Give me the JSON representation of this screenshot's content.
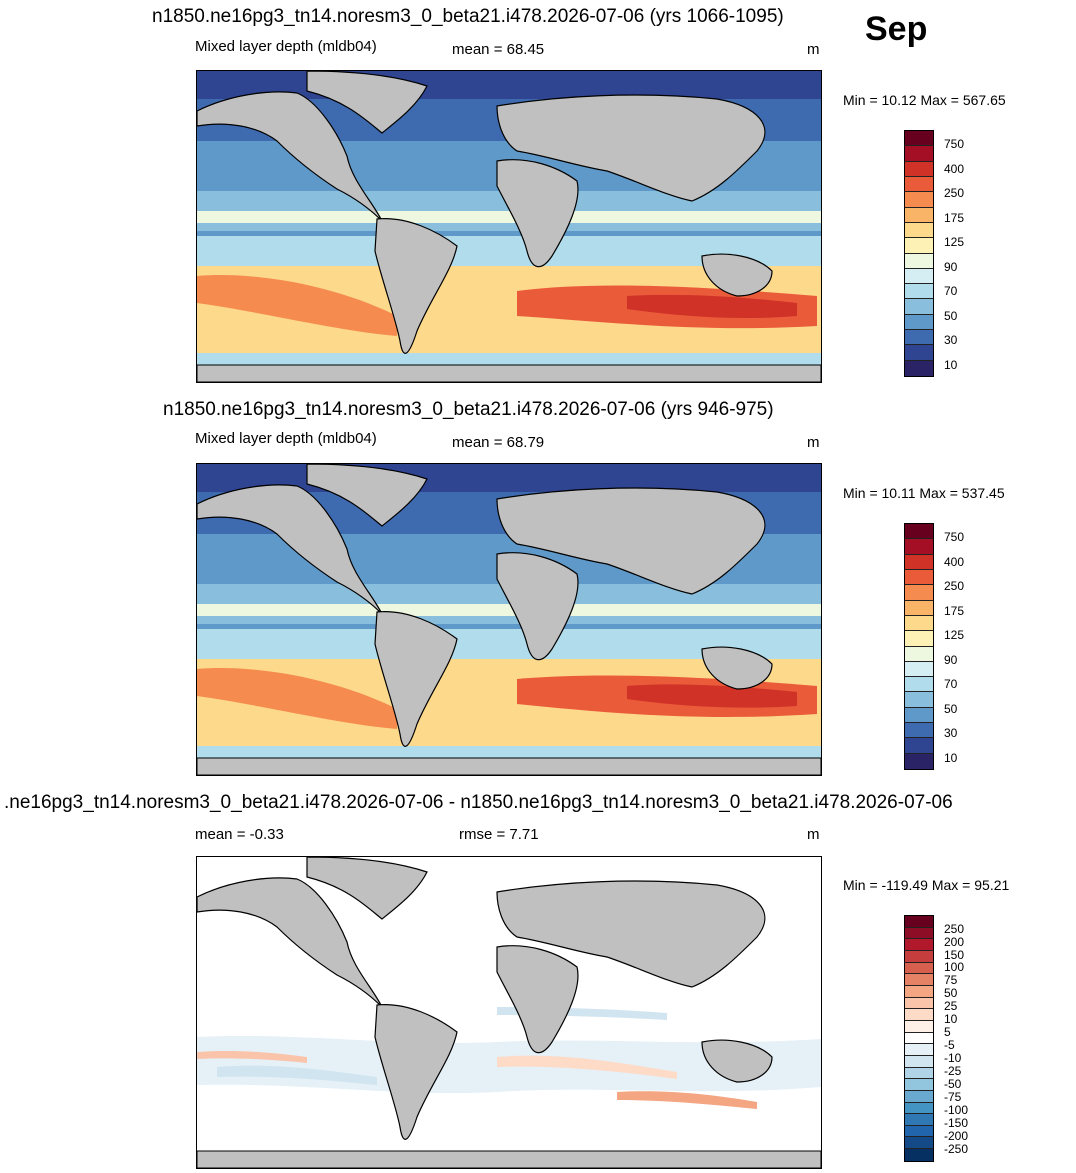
{
  "month_label": "Sep",
  "panels": [
    {
      "title": "n1850.ne16pg3_tn14.noresm3_0_beta21.i478.2026-07-06 (yrs 1066-1095)",
      "variable": "Mixed layer depth (mldb04)",
      "stat1": "mean =  68.45",
      "stat2": "",
      "unit": "m",
      "minmax": "Min =  10.12 Max = 567.65",
      "colorbar": {
        "labels": [
          "750",
          "400",
          "250",
          "175",
          "125",
          "90",
          "70",
          "50",
          "30",
          "10"
        ],
        "colors": [
          "#67001f",
          "#a50f26",
          "#d03227",
          "#ea5b3a",
          "#f58b4f",
          "#f9b467",
          "#fdd98b",
          "#fdf1b5",
          "#eef8e0",
          "#d5eef3",
          "#b0dceb",
          "#89bfdc",
          "#5f99c9",
          "#3e6bb0",
          "#2f4592",
          "#2a2366"
        ]
      }
    },
    {
      "title": "n1850.ne16pg3_tn14.noresm3_0_beta21.i478.2026-07-06 (yrs 946-975)",
      "variable": "Mixed layer depth (mldb04)",
      "stat1": "mean =  68.79",
      "stat2": "",
      "unit": "m",
      "minmax": "Min =  10.11 Max = 537.45",
      "colorbar": {
        "labels": [
          "750",
          "400",
          "250",
          "175",
          "125",
          "90",
          "70",
          "50",
          "30",
          "10"
        ],
        "colors": [
          "#67001f",
          "#a50f26",
          "#d03227",
          "#ea5b3a",
          "#f58b4f",
          "#f9b467",
          "#fdd98b",
          "#fdf1b5",
          "#eef8e0",
          "#d5eef3",
          "#b0dceb",
          "#89bfdc",
          "#5f99c9",
          "#3e6bb0",
          "#2f4592",
          "#2a2366"
        ]
      }
    },
    {
      "title": ".ne16pg3_tn14.noresm3_0_beta21.i478.2026-07-06 - n1850.ne16pg3_tn14.noresm3_0_beta21.i478.2026-07-06",
      "variable": "",
      "stat1": "mean =  -0.33",
      "stat2": "rmse =   7.71",
      "unit": "m",
      "minmax": "Min = -119.49 Max =  95.21",
      "colorbar": {
        "labels": [
          "250",
          "200",
          "150",
          "100",
          "75",
          "50",
          "25",
          "10",
          "5",
          "-5",
          "-10",
          "-25",
          "-50",
          "-75",
          "-100",
          "-150",
          "-200",
          "-250"
        ],
        "colors": [
          "#67001f",
          "#8e0d26",
          "#b2182b",
          "#c53e3d",
          "#d6604d",
          "#e58266",
          "#f4a582",
          "#f9c4a9",
          "#fddbc7",
          "#fef0e6",
          "#ffffff",
          "#e6f0f7",
          "#d1e5f0",
          "#b0d3e7",
          "#92c5de",
          "#6aa9cf",
          "#4393c3",
          "#2f78b4",
          "#2166ac",
          "#134a87",
          "#053061"
        ]
      }
    }
  ]
}
